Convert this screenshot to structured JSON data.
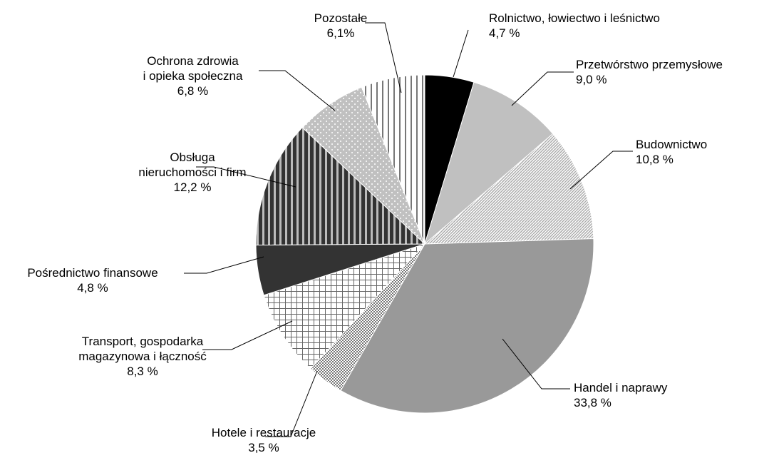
{
  "chart_data": {
    "type": "pie",
    "categories": [
      "Rolnictwo, łowiectwo i leśnictwo",
      "Przetwórstwo przemysłowe",
      "Budownictwo",
      "Handel i naprawy",
      "Hotele i restauracje",
      "Transport, gospodarka\nmagazynowa i łączność",
      "Pośrednictwo finansowe",
      "Obsługa\nnieruchomości i firm",
      "Ochrona zdrowia\ni opieka społeczna",
      "Pozostałe"
    ],
    "values": [
      4.7,
      9.0,
      10.8,
      33.8,
      3.5,
      8.3,
      4.8,
      12.2,
      6.8,
      6.1
    ],
    "value_labels": [
      "4,7 %",
      "9,0 %",
      "10,8 %",
      "33,8 %",
      "3,5 %",
      "8,3 %",
      "4,8 %",
      "12,2 %",
      "6,8 %",
      "6,1%"
    ],
    "colors": [
      "#000000",
      "#c0c0c0",
      "#ffffff",
      "#999999",
      "#ffffff",
      "#ffffff",
      "#333333",
      "#333333",
      "#c0c0c0",
      "#ffffff"
    ]
  }
}
